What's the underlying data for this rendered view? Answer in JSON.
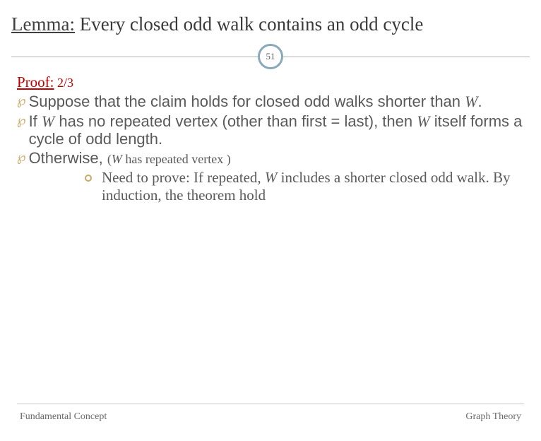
{
  "title_underline": "Lemma:",
  "title_rest": " Every closed odd walk contains an odd cycle",
  "page_number": "51",
  "proof_label": "Proof:",
  "proof_fraction": " 2/3",
  "bullet1_a": "Suppose that the claim holds for closed odd walks shorter than ",
  "bullet1_b": "W",
  "bullet1_c": ".",
  "bullet2_a": "If ",
  "bullet2_b": "W",
  "bullet2_c": " has no repeated vertex (other than first = last), then ",
  "bullet2_d": "W",
  "bullet2_e": " itself forms a cycle of odd length.",
  "bullet3_a": "Otherwise, ",
  "bullet3_note_a": "(",
  "bullet3_note_b": "W",
  "bullet3_note_c": " has repeated vertex )",
  "sub_a": "Need to prove: If repeated,  ",
  "sub_b": "W",
  "sub_c": " includes a shorter closed odd walk. By induction, the theorem hold",
  "footer_left": "Fundamental Concept",
  "footer_right": "Graph Theory",
  "colors": {
    "accent_red": "#c00000",
    "bullet_gold": "#c9a96a",
    "badge_border": "#8aa9b8",
    "text_gray": "#5a5a5a",
    "line_gray": "#b0b0b0"
  }
}
